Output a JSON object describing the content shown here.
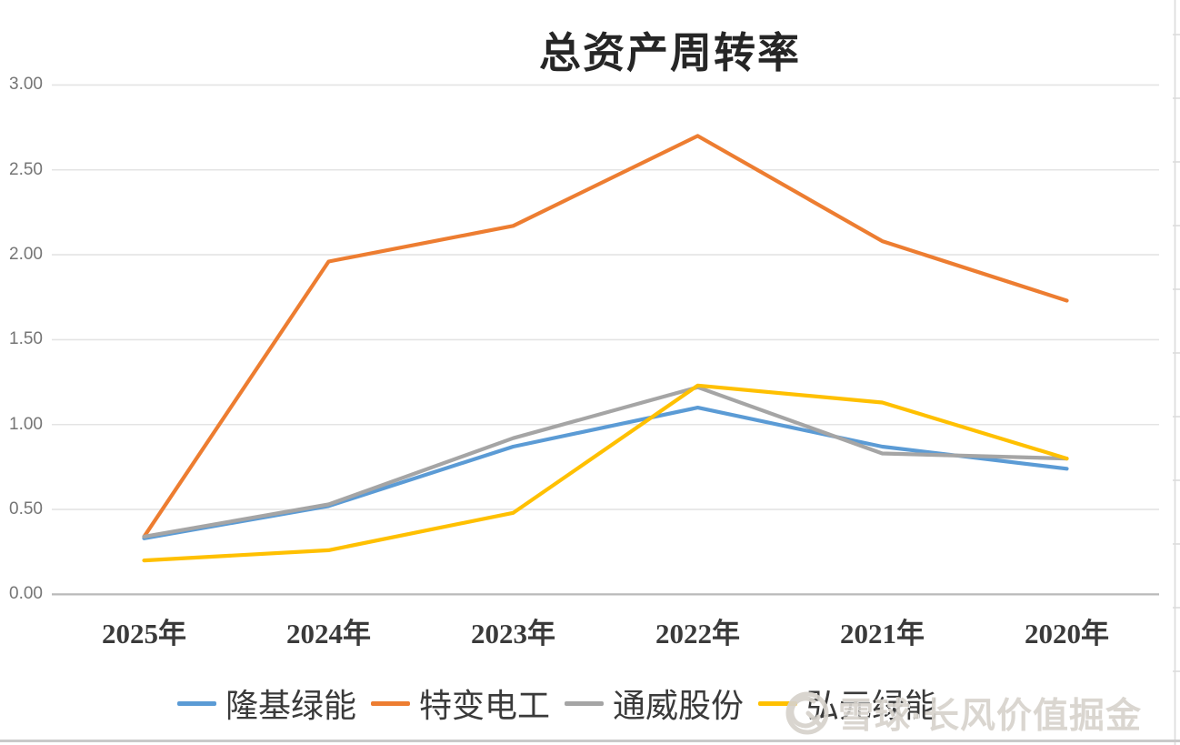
{
  "chart_data": {
    "type": "line",
    "title": "总资产周转率",
    "categories": [
      "2025年",
      "2024年",
      "2023年",
      "2022年",
      "2021年",
      "2020年"
    ],
    "series": [
      {
        "name": "隆基绿能",
        "color": "#5B9BD5",
        "values": [
          0.33,
          0.52,
          0.87,
          1.1,
          0.87,
          0.74
        ]
      },
      {
        "name": "特变电工",
        "color": "#ED7D31",
        "values": [
          0.34,
          1.96,
          2.17,
          2.7,
          2.08,
          1.73
        ]
      },
      {
        "name": "通威股份",
        "color": "#A5A5A5",
        "values": [
          0.34,
          0.53,
          0.92,
          1.22,
          0.83,
          0.8
        ]
      },
      {
        "name": "弘元绿能",
        "color": "#FFC000",
        "values": [
          0.2,
          0.26,
          0.48,
          1.23,
          1.13,
          0.8
        ]
      }
    ],
    "xlabel": "",
    "ylabel": "",
    "ylim": [
      0,
      3
    ],
    "ytick_step": 0.5,
    "ytick_labels_top_down": [
      "3.00",
      "2.50",
      "2.00",
      "1.50",
      "1.00",
      "0.50",
      "0.00"
    ],
    "grid": true,
    "legend_position": "bottom"
  },
  "watermark": {
    "logo": "xueqiu-logo",
    "text": "雪球·长风价值掘金"
  },
  "colors": {
    "gridline": "#e4e4e4",
    "axis_line": "#b9b9b9",
    "right_border": "#dcdcdc",
    "ylabel_text": "#757575",
    "xlabel_text": "#3a3a3a",
    "title_text": "#262626",
    "legend_text": "#3a3a3a",
    "watermark_text": "#d7d3cd",
    "bottom_border": "#c9c9c9"
  }
}
